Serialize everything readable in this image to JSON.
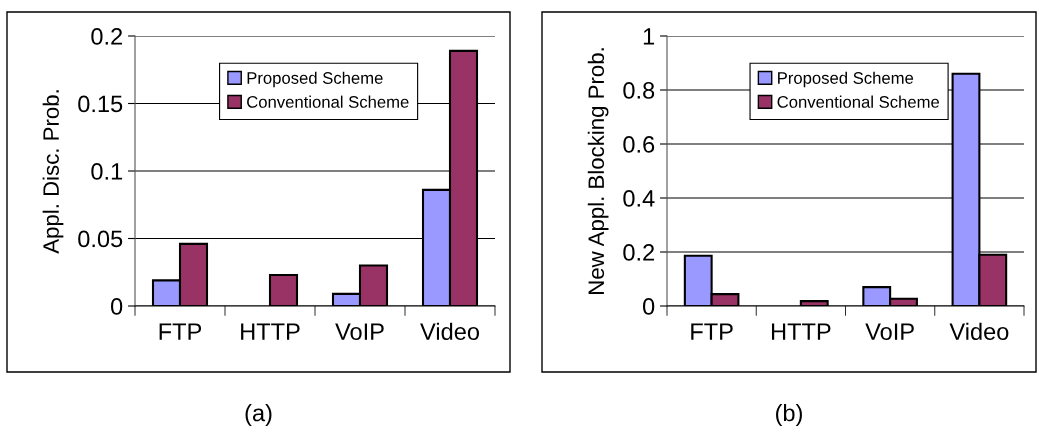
{
  "chart_data": [
    {
      "type": "bar",
      "ylabel": "Appl. Disc. Prob.",
      "categories": [
        "FTP",
        "HTTP",
        "VoIP",
        "Video"
      ],
      "series": [
        {
          "name": "Proposed Scheme",
          "color": "#9999ff",
          "values": [
            0.019,
            null,
            0.009,
            0.086
          ]
        },
        {
          "name": "Conventional Scheme",
          "color": "#993366",
          "values": [
            0.046,
            0.023,
            0.03,
            0.189
          ]
        }
      ],
      "ylim": [
        0,
        0.2
      ],
      "yticks": [
        0,
        0.05,
        0.1,
        0.15,
        0.2
      ],
      "grid": "y",
      "legend": "top",
      "annotations": [
        "(a)"
      ]
    },
    {
      "type": "bar",
      "ylabel": "New Appl. Blocking Prob.",
      "categories": [
        "FTP",
        "HTTP",
        "VoIP",
        "Video"
      ],
      "series": [
        {
          "name": "Proposed Scheme",
          "color": "#9999ff",
          "values": [
            0.186,
            null,
            0.07,
            0.86
          ]
        },
        {
          "name": "Conventional Scheme",
          "color": "#993366",
          "values": [
            0.044,
            0.018,
            0.027,
            0.19
          ]
        }
      ],
      "ylim": [
        0,
        1
      ],
      "yticks": [
        0,
        0.2,
        0.4,
        0.6,
        0.8,
        1
      ],
      "grid": "y",
      "legend": "top",
      "annotations": [
        "(b)"
      ]
    }
  ]
}
